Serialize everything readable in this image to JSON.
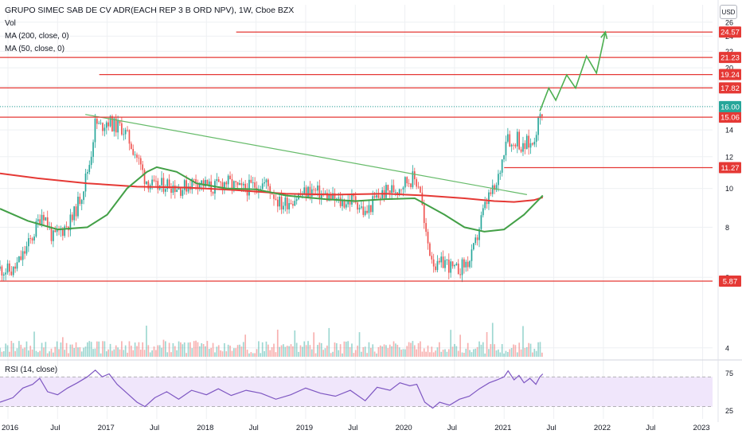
{
  "header": {
    "symbol_title": "GRUPO SIMEC SAB DE CV ADR(EACH REP 3 B ORD NPV), 1W, Cboe BZX",
    "vol_label": "Vol",
    "ma200_label": "MA (200, close, 0)",
    "ma50_label": "MA (50, close, 0)",
    "currency_button": "USD"
  },
  "rsi_panel": {
    "label": "RSI (14, close)"
  },
  "colors": {
    "background": "#ffffff",
    "grid": "#eef0f3",
    "up_candle": "#26a69a",
    "down_candle": "#ef5350",
    "ma200": "#e53935",
    "ma50": "#43a047",
    "level_line": "#e53935",
    "trendline": "#66bb6a",
    "projection": "#4caf50",
    "last_price_badge": "#26a69a",
    "rsi_line": "#7e57c2",
    "rsi_band": "#f0e6fb"
  },
  "chart_data": {
    "type": "candlestick",
    "title": "GRUPO SIMEC SAB DE CV ADR(EACH REP 3 B ORD NPV), 1W, Cboe BZX",
    "x_axis": {
      "ticks": [
        {
          "t": 2016.0,
          "label": "2016"
        },
        {
          "t": 2016.5,
          "label": "Jul"
        },
        {
          "t": 2017.0,
          "label": "2017"
        },
        {
          "t": 2017.5,
          "label": "Jul"
        },
        {
          "t": 2018.0,
          "label": "2018"
        },
        {
          "t": 2018.5,
          "label": "Jul"
        },
        {
          "t": 2019.0,
          "label": "2019"
        },
        {
          "t": 2019.5,
          "label": "Jul"
        },
        {
          "t": 2020.0,
          "label": "2020"
        },
        {
          "t": 2020.5,
          "label": "Jul"
        },
        {
          "t": 2021.0,
          "label": "2021"
        },
        {
          "t": 2021.5,
          "label": "Jul"
        },
        {
          "t": 2022.0,
          "label": "2022"
        },
        {
          "t": 2022.5,
          "label": "Jul"
        },
        {
          "t": 2023.0,
          "label": "2023"
        }
      ],
      "range": [
        2015.92,
        2023.1
      ]
    },
    "y_axis": {
      "scale": "log",
      "unit": "USD",
      "ticks": [
        4,
        6,
        8,
        10,
        12,
        14,
        16,
        18,
        20,
        22,
        24,
        26
      ],
      "range": [
        3.8,
        27.2
      ]
    },
    "price_path": [
      {
        "t": 2015.92,
        "close": 6.3
      },
      {
        "t": 2016.05,
        "close": 6.2
      },
      {
        "t": 2016.15,
        "close": 6.8
      },
      {
        "t": 2016.25,
        "close": 7.6
      },
      {
        "t": 2016.35,
        "close": 8.8
      },
      {
        "t": 2016.45,
        "close": 7.5
      },
      {
        "t": 2016.55,
        "close": 7.9
      },
      {
        "t": 2016.65,
        "close": 8.4
      },
      {
        "t": 2016.75,
        "close": 9.8
      },
      {
        "t": 2016.83,
        "close": 11.8
      },
      {
        "t": 2016.88,
        "close": 14.6
      },
      {
        "t": 2016.93,
        "close": 14.2
      },
      {
        "t": 2017.0,
        "close": 14.8
      },
      {
        "t": 2017.08,
        "close": 14.3
      },
      {
        "t": 2017.15,
        "close": 14.2
      },
      {
        "t": 2017.22,
        "close": 13.2
      },
      {
        "t": 2017.3,
        "close": 12.0
      },
      {
        "t": 2017.38,
        "close": 10.6
      },
      {
        "t": 2017.48,
        "close": 10.0
      },
      {
        "t": 2017.6,
        "close": 10.3
      },
      {
        "t": 2017.75,
        "close": 10.0
      },
      {
        "t": 2017.9,
        "close": 10.5
      },
      {
        "t": 2018.05,
        "close": 10.0
      },
      {
        "t": 2018.2,
        "close": 10.4
      },
      {
        "t": 2018.35,
        "close": 9.9
      },
      {
        "t": 2018.5,
        "close": 10.2
      },
      {
        "t": 2018.6,
        "close": 10.3
      },
      {
        "t": 2018.75,
        "close": 9.1
      },
      {
        "t": 2018.9,
        "close": 9.5
      },
      {
        "t": 2019.05,
        "close": 9.9
      },
      {
        "t": 2019.2,
        "close": 9.6
      },
      {
        "t": 2019.35,
        "close": 9.2
      },
      {
        "t": 2019.5,
        "close": 9.4
      },
      {
        "t": 2019.6,
        "close": 8.6
      },
      {
        "t": 2019.7,
        "close": 9.4
      },
      {
        "t": 2019.8,
        "close": 9.8
      },
      {
        "t": 2019.92,
        "close": 10.0
      },
      {
        "t": 2020.0,
        "close": 10.4
      },
      {
        "t": 2020.08,
        "close": 10.6
      },
      {
        "t": 2020.15,
        "close": 10.2
      },
      {
        "t": 2020.2,
        "close": 7.8
      },
      {
        "t": 2020.25,
        "close": 7.0
      },
      {
        "t": 2020.32,
        "close": 6.3
      },
      {
        "t": 2020.4,
        "close": 6.6
      },
      {
        "t": 2020.5,
        "close": 6.2
      },
      {
        "t": 2020.58,
        "close": 6.4
      },
      {
        "t": 2020.66,
        "close": 6.6
      },
      {
        "t": 2020.72,
        "close": 7.4
      },
      {
        "t": 2020.78,
        "close": 8.6
      },
      {
        "t": 2020.85,
        "close": 9.6
      },
      {
        "t": 2020.92,
        "close": 10.0
      },
      {
        "t": 2020.98,
        "close": 11.8
      },
      {
        "t": 2021.03,
        "close": 14.0
      },
      {
        "t": 2021.08,
        "close": 12.6
      },
      {
        "t": 2021.13,
        "close": 13.6
      },
      {
        "t": 2021.18,
        "close": 12.4
      },
      {
        "t": 2021.23,
        "close": 13.0
      },
      {
        "t": 2021.28,
        "close": 12.8
      },
      {
        "t": 2021.32,
        "close": 14.0
      },
      {
        "t": 2021.36,
        "close": 15.0
      },
      {
        "t": 2021.39,
        "close": 16.0
      }
    ],
    "moving_averages": [
      {
        "name": "MA (200, close, 0)",
        "points": [
          {
            "t": 2015.92,
            "v": 10.9
          },
          {
            "t": 2016.3,
            "v": 10.6
          },
          {
            "t": 2016.8,
            "v": 10.3
          },
          {
            "t": 2017.3,
            "v": 10.1
          },
          {
            "t": 2017.8,
            "v": 10.05
          },
          {
            "t": 2018.3,
            "v": 9.9
          },
          {
            "t": 2018.8,
            "v": 9.7
          },
          {
            "t": 2019.3,
            "v": 9.65
          },
          {
            "t": 2019.8,
            "v": 9.7
          },
          {
            "t": 2020.2,
            "v": 9.6
          },
          {
            "t": 2020.6,
            "v": 9.45
          },
          {
            "t": 2020.9,
            "v": 9.3
          },
          {
            "t": 2021.1,
            "v": 9.25
          },
          {
            "t": 2021.3,
            "v": 9.35
          },
          {
            "t": 2021.39,
            "v": 9.5
          }
        ]
      },
      {
        "name": "MA (50, close, 0)",
        "points": [
          {
            "t": 2015.92,
            "v": 8.9
          },
          {
            "t": 2016.2,
            "v": 8.3
          },
          {
            "t": 2016.5,
            "v": 7.9
          },
          {
            "t": 2016.8,
            "v": 8.0
          },
          {
            "t": 2017.0,
            "v": 8.6
          },
          {
            "t": 2017.2,
            "v": 10.0
          },
          {
            "t": 2017.4,
            "v": 11.0
          },
          {
            "t": 2017.5,
            "v": 11.3
          },
          {
            "t": 2017.7,
            "v": 11.0
          },
          {
            "t": 2017.9,
            "v": 10.3
          },
          {
            "t": 2018.2,
            "v": 10.0
          },
          {
            "t": 2018.5,
            "v": 9.95
          },
          {
            "t": 2018.8,
            "v": 9.6
          },
          {
            "t": 2019.2,
            "v": 9.4
          },
          {
            "t": 2019.5,
            "v": 9.3
          },
          {
            "t": 2019.8,
            "v": 9.4
          },
          {
            "t": 2020.1,
            "v": 9.45
          },
          {
            "t": 2020.4,
            "v": 8.6
          },
          {
            "t": 2020.6,
            "v": 8.0
          },
          {
            "t": 2020.8,
            "v": 7.8
          },
          {
            "t": 2021.0,
            "v": 7.9
          },
          {
            "t": 2021.2,
            "v": 8.6
          },
          {
            "t": 2021.39,
            "v": 9.6
          }
        ]
      }
    ],
    "horizontal_levels": [
      {
        "value": 24.57,
        "label": "24.57",
        "t_start": 2018.3
      },
      {
        "value": 21.23,
        "label": "21.23",
        "t_start": 2015.92
      },
      {
        "value": 19.24,
        "label": "19.24",
        "t_start": 2016.92
      },
      {
        "value": 17.82,
        "label": "17.82",
        "t_start": 2015.92
      },
      {
        "value": 15.06,
        "label": "15.06",
        "t_start": 2015.92
      },
      {
        "value": 11.27,
        "label": "11.27",
        "t_start": 2021.0
      },
      {
        "value": 5.87,
        "label": "5.87",
        "t_start": 2015.92
      }
    ],
    "last_price": {
      "value": 16.0,
      "label": "16.00"
    },
    "trendline": {
      "from": {
        "t": 2016.78,
        "v": 15.3
      },
      "to": {
        "t": 2021.23,
        "v": 9.65
      }
    },
    "projection_path": [
      {
        "t": 2021.36,
        "v": 15.6
      },
      {
        "t": 2021.45,
        "v": 17.8
      },
      {
        "t": 2021.52,
        "v": 16.6
      },
      {
        "t": 2021.63,
        "v": 19.2
      },
      {
        "t": 2021.72,
        "v": 17.8
      },
      {
        "t": 2021.83,
        "v": 21.4
      },
      {
        "t": 2021.93,
        "v": 19.4
      },
      {
        "t": 2022.02,
        "v": 24.57
      }
    ],
    "rsi": {
      "name": "RSI (14, close)",
      "ticks": [
        25,
        75
      ],
      "range": [
        20,
        82
      ],
      "band": [
        30,
        70
      ],
      "points": [
        {
          "t": 2015.92,
          "v": 36
        },
        {
          "t": 2016.05,
          "v": 42
        },
        {
          "t": 2016.15,
          "v": 55
        },
        {
          "t": 2016.25,
          "v": 60
        },
        {
          "t": 2016.32,
          "v": 68
        },
        {
          "t": 2016.4,
          "v": 50
        },
        {
          "t": 2016.5,
          "v": 46
        },
        {
          "t": 2016.6,
          "v": 55
        },
        {
          "t": 2016.7,
          "v": 62
        },
        {
          "t": 2016.8,
          "v": 70
        },
        {
          "t": 2016.88,
          "v": 79
        },
        {
          "t": 2016.95,
          "v": 70
        },
        {
          "t": 2017.02,
          "v": 74
        },
        {
          "t": 2017.1,
          "v": 60
        },
        {
          "t": 2017.2,
          "v": 48
        },
        {
          "t": 2017.3,
          "v": 36
        },
        {
          "t": 2017.38,
          "v": 30
        },
        {
          "t": 2017.48,
          "v": 42
        },
        {
          "t": 2017.6,
          "v": 50
        },
        {
          "t": 2017.72,
          "v": 40
        },
        {
          "t": 2017.85,
          "v": 52
        },
        {
          "t": 2018.0,
          "v": 46
        },
        {
          "t": 2018.12,
          "v": 54
        },
        {
          "t": 2018.25,
          "v": 45
        },
        {
          "t": 2018.4,
          "v": 52
        },
        {
          "t": 2018.55,
          "v": 48
        },
        {
          "t": 2018.7,
          "v": 40
        },
        {
          "t": 2018.85,
          "v": 46
        },
        {
          "t": 2019.0,
          "v": 55
        },
        {
          "t": 2019.15,
          "v": 48
        },
        {
          "t": 2019.3,
          "v": 44
        },
        {
          "t": 2019.45,
          "v": 52
        },
        {
          "t": 2019.6,
          "v": 38
        },
        {
          "t": 2019.72,
          "v": 56
        },
        {
          "t": 2019.85,
          "v": 52
        },
        {
          "t": 2019.95,
          "v": 62
        },
        {
          "t": 2020.05,
          "v": 58
        },
        {
          "t": 2020.12,
          "v": 60
        },
        {
          "t": 2020.2,
          "v": 36
        },
        {
          "t": 2020.28,
          "v": 28
        },
        {
          "t": 2020.35,
          "v": 36
        },
        {
          "t": 2020.45,
          "v": 32
        },
        {
          "t": 2020.55,
          "v": 40
        },
        {
          "t": 2020.65,
          "v": 44
        },
        {
          "t": 2020.75,
          "v": 54
        },
        {
          "t": 2020.85,
          "v": 62
        },
        {
          "t": 2020.93,
          "v": 66
        },
        {
          "t": 2021.0,
          "v": 70
        },
        {
          "t": 2021.04,
          "v": 78
        },
        {
          "t": 2021.1,
          "v": 66
        },
        {
          "t": 2021.15,
          "v": 72
        },
        {
          "t": 2021.2,
          "v": 62
        },
        {
          "t": 2021.26,
          "v": 68
        },
        {
          "t": 2021.32,
          "v": 60
        },
        {
          "t": 2021.36,
          "v": 70
        },
        {
          "t": 2021.39,
          "v": 74
        }
      ]
    }
  }
}
